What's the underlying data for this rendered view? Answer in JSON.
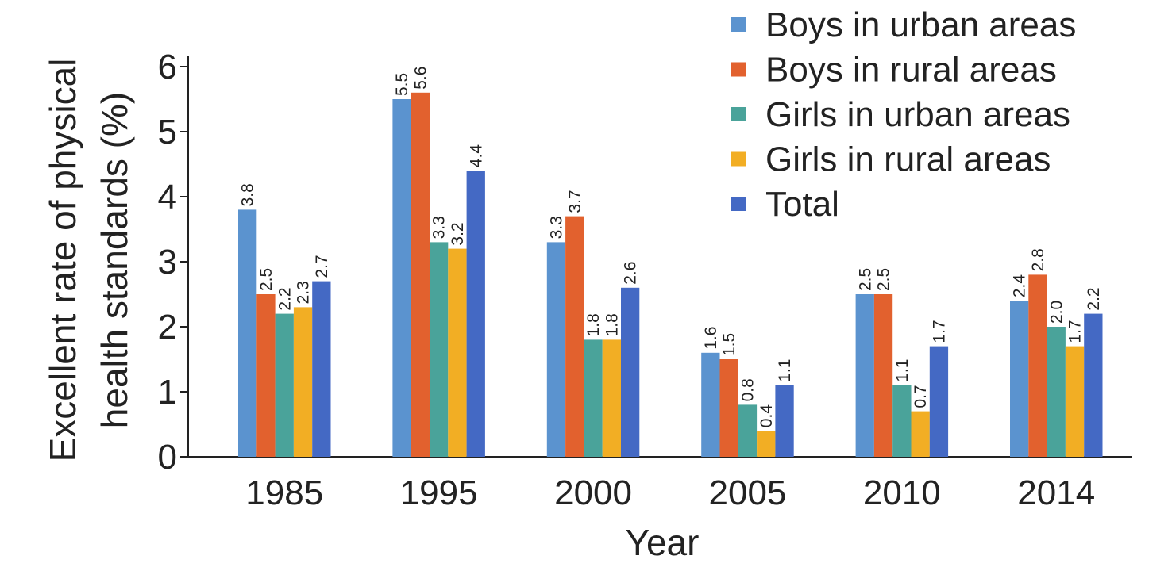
{
  "chart_data": {
    "type": "bar",
    "categories": [
      "1985",
      "1995",
      "2000",
      "2005",
      "2010",
      "2014"
    ],
    "series": [
      {
        "name": "Boys in urban areas",
        "color": "#5b93cf",
        "values": [
          3.8,
          5.5,
          3.3,
          1.6,
          2.5,
          2.4
        ],
        "labels": [
          "3.8",
          "5.5",
          "3.3",
          "1.6",
          "2.5",
          "2.4"
        ]
      },
      {
        "name": "Boys in rural areas",
        "color": "#e2612e",
        "values": [
          2.5,
          5.6,
          3.7,
          1.5,
          2.5,
          2.8
        ],
        "labels": [
          "2.5",
          "5.6",
          "3.7",
          "1.5",
          "2.5",
          "2.8"
        ]
      },
      {
        "name": "Girls in urban areas",
        "color": "#4aa39a",
        "values": [
          2.2,
          3.3,
          1.8,
          0.8,
          1.1,
          2.0
        ],
        "labels": [
          "2.2",
          "3.3",
          "1.8",
          "0.8",
          "1.1",
          "2.0"
        ]
      },
      {
        "name": "Girls in rural areas",
        "color": "#f2ae24",
        "values": [
          2.3,
          3.2,
          1.8,
          0.4,
          0.7,
          1.7
        ],
        "labels": [
          "2.3",
          "3.2",
          "1.8",
          "0.4",
          "0.7",
          "1.7"
        ]
      },
      {
        "name": "Total",
        "color": "#4469c4",
        "values": [
          2.7,
          4.4,
          2.6,
          1.1,
          1.7,
          2.2
        ],
        "labels": [
          "2.7",
          "4.4",
          "2.6",
          "1.1",
          "1.7",
          "2.2"
        ]
      }
    ],
    "xlabel": "Year",
    "ylabel_lines": [
      "Excellent rate of physical",
      "health standards (%)"
    ],
    "ylim": [
      0,
      6
    ],
    "yticks": [
      "0",
      "1",
      "2",
      "3",
      "4",
      "5",
      "6"
    ],
    "grid": false,
    "legend_position": "top-right"
  }
}
